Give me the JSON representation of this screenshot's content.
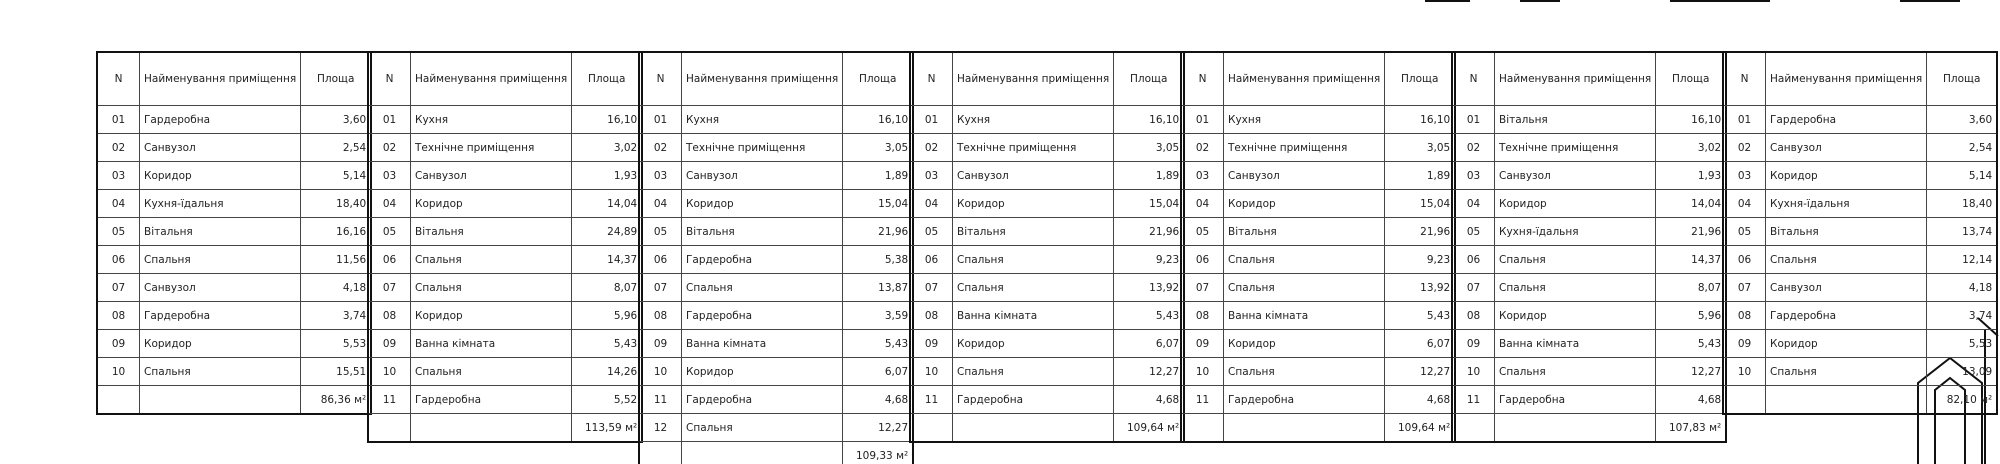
{
  "tables": [
    {
      "header": [
        "N",
        "Найменування приміщення",
        "Площа"
      ],
      "rows": [
        [
          "01",
          "Гардеробна",
          "3,60"
        ],
        [
          "02",
          "Санвузол",
          "2,54"
        ],
        [
          "03",
          "Коридор",
          "5,14"
        ],
        [
          "04",
          "Кухня-їдальня",
          "18,40"
        ],
        [
          "05",
          "Вітальня",
          "16,16"
        ],
        [
          "06",
          "Спальня",
          "11,56"
        ],
        [
          "07",
          "Санвузол",
          "4,18"
        ],
        [
          "08",
          "Гардеробна",
          "3,74"
        ],
        [
          "09",
          "Коридор",
          "5,53"
        ],
        [
          "10",
          "Спальня",
          "15,51"
        ]
      ],
      "total": "86,36 м²"
    },
    {
      "header": [
        "N",
        "Найменування приміщення",
        "Площа"
      ],
      "rows": [
        [
          "01",
          "Кухня",
          "16,10"
        ],
        [
          "02",
          "Технічне приміщення",
          "3,02"
        ],
        [
          "03",
          "Санвузол",
          "1,93"
        ],
        [
          "04",
          "Коридор",
          "14,04"
        ],
        [
          "05",
          "Вітальня",
          "24,89"
        ],
        [
          "06",
          "Спальня",
          "14,37"
        ],
        [
          "07",
          "Спальня",
          "8,07"
        ],
        [
          "08",
          "Коридор",
          "5,96"
        ],
        [
          "09",
          "Ванна кімната",
          "5,43"
        ],
        [
          "10",
          "Спальня",
          "14,26"
        ],
        [
          "11",
          "Гардеробна",
          "5,52"
        ]
      ],
      "total": "113,59 м²"
    },
    {
      "header": [
        "N",
        "Найменування приміщення",
        "Площа"
      ],
      "rows": [
        [
          "01",
          "Кухня",
          "16,10"
        ],
        [
          "02",
          "Технічне приміщення",
          "3,05"
        ],
        [
          "03",
          "Санвузол",
          "1,89"
        ],
        [
          "04",
          "Коридор",
          "15,04"
        ],
        [
          "05",
          "Вітальня",
          "21,96"
        ],
        [
          "06",
          "Гардеробна",
          "5,38"
        ],
        [
          "07",
          "Спальня",
          "13,87"
        ],
        [
          "08",
          "Гардеробна",
          "3,59"
        ],
        [
          "09",
          "Ванна кімната",
          "5,43"
        ],
        [
          "10",
          "Коридор",
          "6,07"
        ],
        [
          "11",
          "Гардеробна",
          "4,68"
        ],
        [
          "12",
          "Спальня",
          "12,27"
        ]
      ],
      "total": "109,33 м²"
    },
    {
      "header": [
        "N",
        "Найменування приміщення",
        "Площа"
      ],
      "rows": [
        [
          "01",
          "Кухня",
          "16,10"
        ],
        [
          "02",
          "Технічне приміщення",
          "3,05"
        ],
        [
          "03",
          "Санвузол",
          "1,89"
        ],
        [
          "04",
          "Коридор",
          "15,04"
        ],
        [
          "05",
          "Вітальня",
          "21,96"
        ],
        [
          "06",
          "Спальня",
          "9,23"
        ],
        [
          "07",
          "Спальня",
          "13,92"
        ],
        [
          "08",
          "Ванна кімната",
          "5,43"
        ],
        [
          "09",
          "Коридор",
          "6,07"
        ],
        [
          "10",
          "Спальня",
          "12,27"
        ],
        [
          "11",
          "Гардеробна",
          "4,68"
        ]
      ],
      "total": "109,64 м²"
    },
    {
      "header": [
        "N",
        "Найменування приміщення",
        "Площа"
      ],
      "rows": [
        [
          "01",
          "Кухня",
          "16,10"
        ],
        [
          "02",
          "Технічне приміщення",
          "3,05"
        ],
        [
          "03",
          "Санвузол",
          "1,89"
        ],
        [
          "04",
          "Коридор",
          "15,04"
        ],
        [
          "05",
          "Вітальня",
          "21,96"
        ],
        [
          "06",
          "Спальня",
          "9,23"
        ],
        [
          "07",
          "Спальня",
          "13,92"
        ],
        [
          "08",
          "Ванна кімната",
          "5,43"
        ],
        [
          "09",
          "Коридор",
          "6,07"
        ],
        [
          "10",
          "Спальня",
          "12,27"
        ],
        [
          "11",
          "Гардеробна",
          "4,68"
        ]
      ],
      "total": "109,64 м²"
    },
    {
      "header": [
        "N",
        "Найменування приміщення",
        "Площа"
      ],
      "rows": [
        [
          "01",
          "Вітальня",
          "16,10"
        ],
        [
          "02",
          "Технічне приміщення",
          "3,02"
        ],
        [
          "03",
          "Санвузол",
          "1,93"
        ],
        [
          "04",
          "Коридор",
          "14,04"
        ],
        [
          "05",
          "Кухня-їдальня",
          "21,96"
        ],
        [
          "06",
          "Спальня",
          "14,37"
        ],
        [
          "07",
          "Спальня",
          "8,07"
        ],
        [
          "08",
          "Коридор",
          "5,96"
        ],
        [
          "09",
          "Ванна кімната",
          "5,43"
        ],
        [
          "10",
          "Спальня",
          "12,27"
        ],
        [
          "11",
          "Гардеробна",
          "4,68"
        ]
      ],
      "total": "107,83 м²"
    },
    {
      "header": [
        "N",
        "Найменування приміщення",
        "Площа"
      ],
      "rows": [
        [
          "01",
          "Гардеробна",
          "3,60"
        ],
        [
          "02",
          "Санвузол",
          "2,54"
        ],
        [
          "03",
          "Коридор",
          "5,14"
        ],
        [
          "04",
          "Кухня-їдальня",
          "18,40"
        ],
        [
          "05",
          "Вітальня",
          "13,74"
        ],
        [
          "06",
          "Спальня",
          "12,14"
        ],
        [
          "07",
          "Санвузол",
          "4,18"
        ],
        [
          "08",
          "Гардеробна",
          "3,74"
        ],
        [
          "09",
          "Коридор",
          "5,53"
        ],
        [
          "10",
          "Спальня",
          "13,09"
        ]
      ],
      "total": "82,10 м²"
    }
  ]
}
